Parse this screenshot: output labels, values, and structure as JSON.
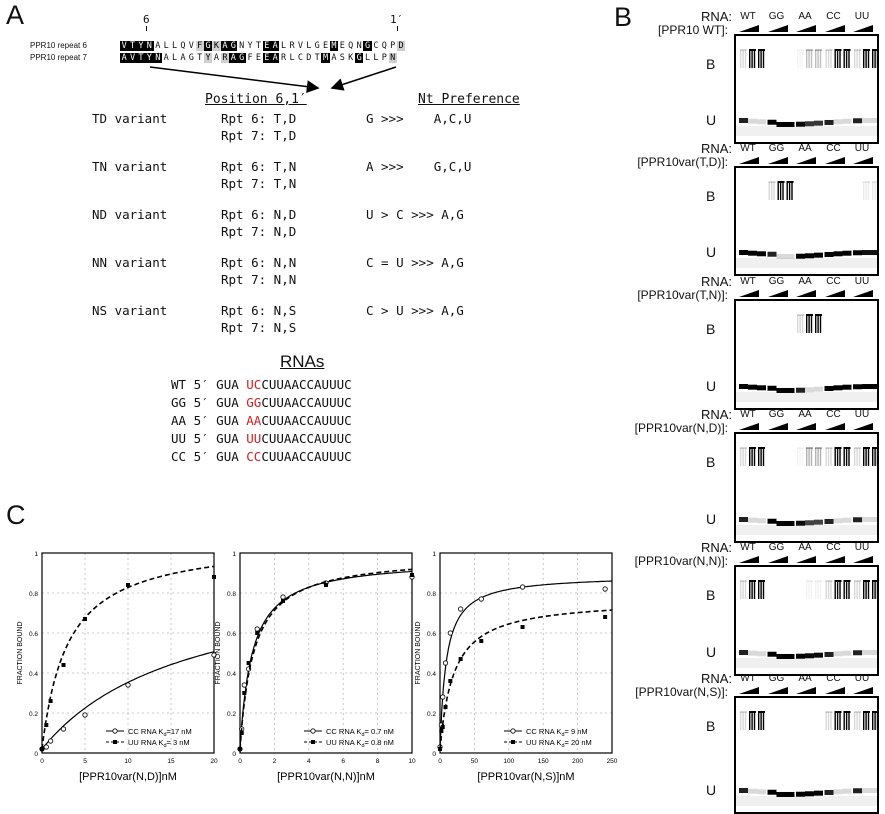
{
  "panel_letters": {
    "a": "A",
    "b": "B",
    "c": "C"
  },
  "panelA": {
    "pos_left": "6",
    "pos_right": "1′",
    "repeat6_label": "PPR10 repeat 6",
    "repeat7_label": "PPR10 repeat 7",
    "repeat6_seq": [
      "V",
      "T",
      "Y",
      "N",
      "A",
      "L",
      "L",
      "Q",
      "V",
      "F",
      "G",
      "K",
      "A",
      "G",
      "N",
      "Y",
      "T",
      "E",
      "A",
      "L",
      "R",
      "V",
      "L",
      "G",
      "E",
      "M",
      "E",
      "Q",
      "N",
      "G",
      "C",
      "Q",
      "P",
      "D"
    ],
    "repeat6_shade": [
      "b",
      "b",
      "b",
      "b",
      "",
      "",
      "",
      "",
      "",
      "g",
      "b",
      "g",
      "b",
      "b",
      "",
      "",
      "",
      "b",
      "b",
      "",
      "",
      "",
      "",
      "",
      "",
      "b",
      "",
      "",
      "",
      "b",
      "",
      "",
      "",
      "g"
    ],
    "repeat7_seq": [
      "A",
      "V",
      "T",
      "Y",
      "N",
      "A",
      "L",
      "A",
      "G",
      "T",
      "Y",
      "A",
      "R",
      "A",
      "G",
      "F",
      "E",
      "E",
      "A",
      "R",
      "L",
      "C",
      "D",
      "T",
      "M",
      "A",
      "S",
      "K",
      "G",
      "L",
      "L",
      "P",
      "N"
    ],
    "repeat7_shade": [
      "b",
      "b",
      "b",
      "b",
      "b",
      "",
      "",
      "",
      "",
      "",
      "g",
      "",
      "g",
      "b",
      "b",
      "",
      "",
      "b",
      "b",
      "",
      "",
      "",
      "",
      "",
      "b",
      "",
      "",
      "",
      "b",
      "",
      "",
      "",
      "g"
    ],
    "header_position": "Position 6,1′",
    "header_pref": "Nt Preference",
    "variants": [
      {
        "name": "TD variant",
        "rpt6": "Rpt 6: T,D",
        "rpt7": "Rpt 7: T,D",
        "pref": "G >>>    A,C,U"
      },
      {
        "name": "TN variant",
        "rpt6": "Rpt 6: T,N",
        "rpt7": "Rpt 7: T,N",
        "pref": "A >>>    G,C,U"
      },
      {
        "name": "ND variant",
        "rpt6": "Rpt 6: N,D",
        "rpt7": "Rpt 7: N,D",
        "pref": "U > C >>> A,G"
      },
      {
        "name": "NN variant",
        "rpt6": "Rpt 6: N,N",
        "rpt7": "Rpt 7: N,N",
        "pref": "C = U >>> A,G"
      },
      {
        "name": "NS variant",
        "rpt6": "Rpt 6: N,S",
        "rpt7": "Rpt 7: N,S",
        "pref": "C > U >>> A,G"
      }
    ],
    "rnas_header": "RNAs",
    "rnas": [
      {
        "name": "WT",
        "prefix": "5′ GUA ",
        "mut": "UC",
        "rest": "CUUAACCAUUUC"
      },
      {
        "name": "GG",
        "prefix": "5′ GUA ",
        "mut": "GG",
        "rest": "CUUAACCAUUUC"
      },
      {
        "name": "AA",
        "prefix": "5′ GUA ",
        "mut": "AA",
        "rest": "CUUAACCAUUUC"
      },
      {
        "name": "UU",
        "prefix": "5′ GUA ",
        "mut": "UU",
        "rest": "CUUAACCAUUUC"
      },
      {
        "name": "CC",
        "prefix": "5′ GUA ",
        "mut": "CC",
        "rest": "CUUAACCAUUUC"
      }
    ]
  },
  "panelB": {
    "rna_label": "RNA:",
    "lanes": [
      "WT",
      "GG",
      "AA",
      "CC",
      "UU"
    ],
    "bound_label": "B",
    "unbound_label": "U",
    "gels": [
      {
        "protein": "[PPR10 WT]:",
        "bound": [
          1.0,
          0.0,
          0.25,
          1.0,
          1.0
        ]
      },
      {
        "protein": "[PPR10var(T,D)]:",
        "bound": [
          0.0,
          1.0,
          0.0,
          0.0,
          0.08
        ]
      },
      {
        "protein": "[PPR10var(T,N)]:",
        "bound": [
          0.0,
          0.0,
          1.0,
          0.0,
          0.0
        ]
      },
      {
        "protein": "[PPR10var(N,D)]:",
        "bound": [
          1.0,
          0.0,
          0.3,
          1.0,
          1.0
        ]
      },
      {
        "protein": "[PPR10var(N,N)]:",
        "bound": [
          1.0,
          0.0,
          0.05,
          1.0,
          1.0
        ]
      },
      {
        "protein": "[PPR10var(N,S)]:",
        "bound": [
          1.0,
          0.0,
          0.0,
          1.0,
          1.0
        ]
      }
    ]
  },
  "chart_data": [
    {
      "type": "scatter",
      "xlabel": "[PPR10var(N,D)]nM",
      "ylabel": "FRACTION BOUND",
      "xlim": [
        0,
        20
      ],
      "ylim": [
        0,
        1
      ],
      "xticks": [
        0,
        5,
        10,
        15,
        20
      ],
      "yticks": [
        0,
        0.2,
        0.4,
        0.6,
        0.8,
        1
      ],
      "grid": true,
      "legend_position": "bottom-right",
      "series": [
        {
          "name": "CC RNA K",
          "sub": "d",
          "kd_text": "=17 nM",
          "kd": 17,
          "bmax": 0.9,
          "marker": "open-circle",
          "line": "solid",
          "x": [
            0,
            0.5,
            1,
            2.5,
            5,
            10,
            20
          ],
          "y": [
            0.02,
            0.03,
            0.06,
            0.12,
            0.19,
            0.34,
            0.49
          ]
        },
        {
          "name": "UU RNA K",
          "sub": "d",
          "kd_text": "=  3 nM",
          "kd": 3,
          "bmax": 1.05,
          "marker": "filled-square",
          "line": "dashed",
          "x": [
            0,
            0.5,
            1,
            2.5,
            5,
            10,
            20
          ],
          "y": [
            0.02,
            0.14,
            0.26,
            0.44,
            0.67,
            0.84,
            0.88
          ]
        }
      ]
    },
    {
      "type": "scatter",
      "xlabel": "[PPR10var(N,N)]nM",
      "ylabel": "FRACTION BOUND",
      "xlim": [
        0,
        10
      ],
      "ylim": [
        0,
        1
      ],
      "xticks": [
        0,
        2,
        4,
        6,
        8,
        10
      ],
      "yticks": [
        0,
        0.2,
        0.4,
        0.6,
        0.8,
        1
      ],
      "grid": true,
      "legend_position": "bottom-right",
      "series": [
        {
          "name": "CC RNA K",
          "sub": "d",
          "kd_text": "= 0.7 nM",
          "kd": 0.7,
          "bmax": 0.95,
          "marker": "open-circle",
          "line": "solid",
          "x": [
            0,
            0.1,
            0.25,
            0.5,
            1,
            2.5,
            5,
            10
          ],
          "y": [
            0.02,
            0.12,
            0.34,
            0.42,
            0.62,
            0.78,
            0.85,
            0.88
          ]
        },
        {
          "name": "UU RNA K",
          "sub": "d",
          "kd_text": "= 0.8 nM",
          "kd": 0.8,
          "bmax": 0.97,
          "marker": "filled-square",
          "line": "dashed",
          "x": [
            0,
            0.1,
            0.25,
            0.5,
            1,
            2.5,
            5,
            10
          ],
          "y": [
            0.02,
            0.1,
            0.3,
            0.45,
            0.6,
            0.76,
            0.84,
            0.89
          ]
        }
      ]
    },
    {
      "type": "scatter",
      "xlabel": "[PPR10var(N,S)]nM",
      "ylabel": "FRACTION BOUND",
      "xlim": [
        0,
        250
      ],
      "ylim": [
        0,
        1
      ],
      "xticks": [
        0,
        50,
        100,
        150,
        200,
        250
      ],
      "yticks": [
        0,
        0.2,
        0.4,
        0.6,
        0.8,
        1
      ],
      "grid": true,
      "legend_position": "bottom-right",
      "series": [
        {
          "name": "CC RNA K",
          "sub": "d",
          "kd_text": "= 9 nM",
          "kd": 9,
          "bmax": 0.87,
          "marker": "open-circle",
          "line": "solid",
          "x": [
            0,
            2,
            4,
            8,
            15,
            30,
            60,
            120,
            240
          ],
          "y": [
            0.03,
            0.14,
            0.28,
            0.45,
            0.6,
            0.72,
            0.77,
            0.83,
            0.82
          ]
        },
        {
          "name": "UU RNA K",
          "sub": "d",
          "kd_text": "= 20 nM",
          "kd": 20,
          "bmax": 0.75,
          "marker": "filled-square",
          "line": "dashed",
          "x": [
            0,
            2,
            4,
            8,
            15,
            30,
            60,
            120,
            240
          ],
          "y": [
            0.02,
            0.11,
            0.13,
            0.23,
            0.36,
            0.47,
            0.56,
            0.63,
            0.68
          ]
        }
      ]
    }
  ]
}
